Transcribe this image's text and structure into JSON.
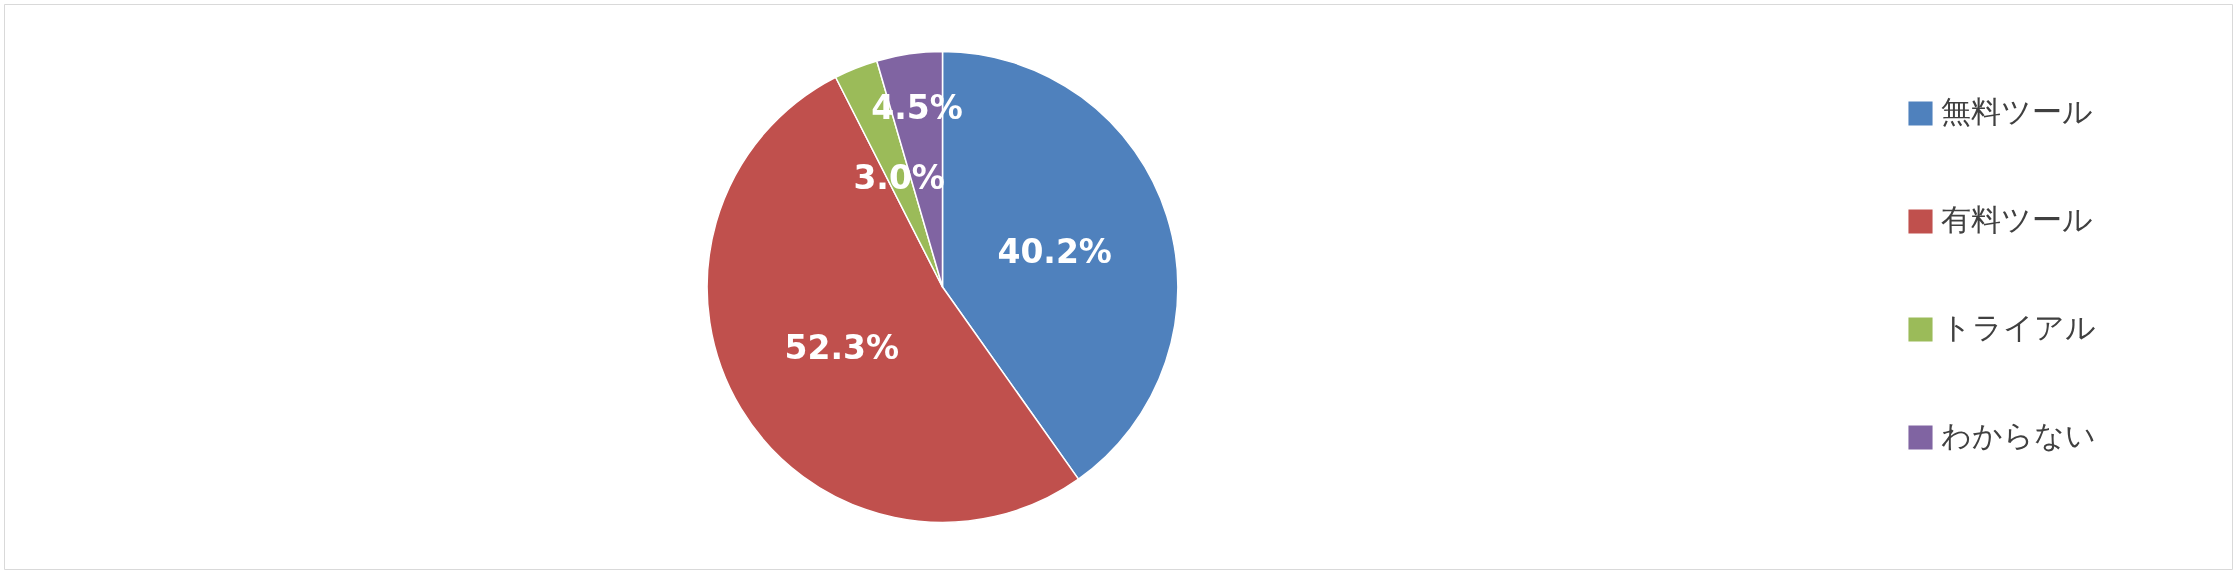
{
  "chart_data": {
    "type": "pie",
    "categories": [
      "無料ツール",
      "有料ツール",
      "トライアル",
      "わからない"
    ],
    "values": [
      40.2,
      52.3,
      3.0,
      4.5
    ],
    "colors": [
      "#4f81bd",
      "#c0504d",
      "#9bbb59",
      "#8064a2"
    ],
    "value_labels": [
      "40.2%",
      "52.3%",
      "3.0%",
      "4.5%"
    ],
    "legend": "right"
  }
}
